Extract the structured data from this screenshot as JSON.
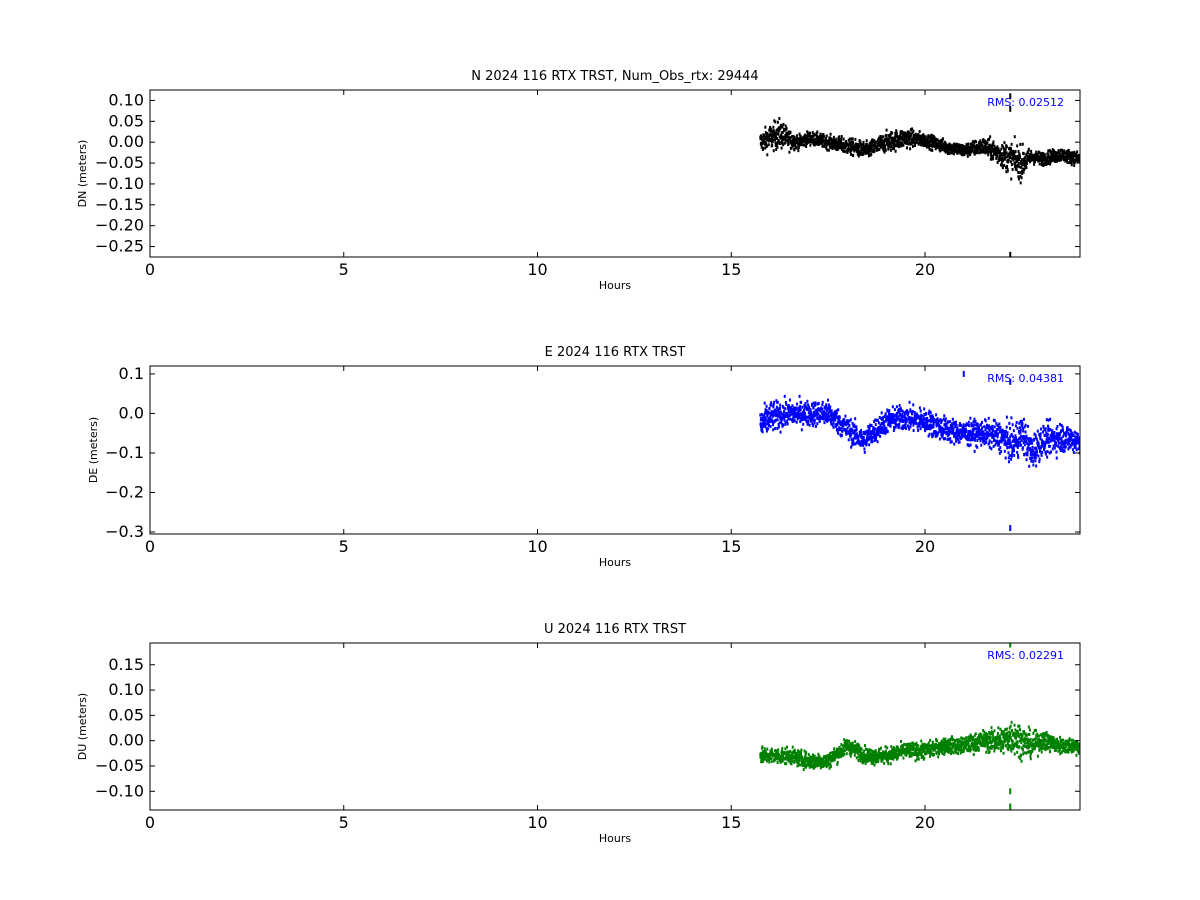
{
  "chart_data": [
    {
      "type": "scatter",
      "title": "N 2024 116 RTX  TRST, Num_Obs_rtx: 29444",
      "xlabel": "Hours",
      "ylabel": "DN (meters)",
      "xlim": [
        0,
        24
      ],
      "ylim": [
        -0.275,
        0.125
      ],
      "xticks": [
        0,
        5,
        10,
        15,
        20
      ],
      "yticks": [
        0.1,
        0.05,
        0.0,
        -0.05,
        -0.1,
        -0.15,
        -0.2,
        -0.25
      ],
      "ytick_labels": [
        "0.10",
        "0.05",
        "0.00",
        "−0.05",
        "−0.10",
        "−0.15",
        "−0.20",
        "−0.25"
      ],
      "color": "#000000",
      "rms_label": "RMS:  0.02512",
      "rms_color": "#0000ff",
      "grid": false,
      "series": [
        {
          "x": [
            15.75,
            16.0,
            16.25,
            16.5,
            16.75,
            17.0,
            17.5,
            18.0,
            18.5,
            19.0,
            19.5,
            20.0,
            20.5,
            21.0,
            21.5,
            22.0,
            22.25,
            22.5,
            22.75,
            23.0,
            23.5,
            24.0
          ],
          "y": [
            0.0,
            0.01,
            0.02,
            0.005,
            0.0,
            0.01,
            0.0,
            -0.01,
            -0.02,
            0.0,
            0.01,
            0.005,
            -0.01,
            -0.02,
            -0.01,
            -0.03,
            -0.04,
            -0.05,
            -0.035,
            -0.04,
            -0.03,
            -0.04
          ],
          "spread": [
            0.03,
            0.04,
            0.045,
            0.03,
            0.02,
            0.02,
            0.02,
            0.025,
            0.025,
            0.03,
            0.03,
            0.02,
            0.02,
            0.02,
            0.025,
            0.04,
            0.05,
            0.05,
            0.02,
            0.02,
            0.02,
            0.02
          ]
        }
      ],
      "outliers": [
        {
          "x": 22.2,
          "y": 0.11
        },
        {
          "x": 22.2,
          "y": 0.08
        },
        {
          "x": 22.2,
          "y": -0.27
        }
      ]
    },
    {
      "type": "scatter",
      "title": "E 2024 116 RTX  TRST",
      "xlabel": "Hours",
      "ylabel": "DE (meters)",
      "xlim": [
        0,
        24
      ],
      "ylim": [
        -0.305,
        0.12
      ],
      "xticks": [
        0,
        5,
        10,
        15,
        20
      ],
      "yticks": [
        0.1,
        0.0,
        -0.1,
        -0.2,
        -0.3
      ],
      "ytick_labels": [
        "0.1",
        "0.0",
        "−0.1",
        "−0.2",
        "−0.3"
      ],
      "color": "#0000ff",
      "rms_label": "RMS:  0.04381",
      "rms_color": "#0000ff",
      "grid": false,
      "series": [
        {
          "x": [
            15.75,
            16.0,
            16.5,
            17.0,
            17.5,
            18.0,
            18.4,
            18.75,
            19.0,
            19.5,
            20.0,
            20.5,
            21.0,
            21.5,
            22.0,
            22.25,
            22.5,
            22.75,
            23.0,
            23.5,
            24.0
          ],
          "y": [
            -0.03,
            -0.01,
            0.0,
            0.0,
            0.0,
            -0.04,
            -0.07,
            -0.04,
            -0.02,
            -0.01,
            -0.02,
            -0.04,
            -0.05,
            -0.05,
            -0.06,
            -0.08,
            -0.05,
            -0.1,
            -0.07,
            -0.06,
            -0.07
          ],
          "spread": [
            0.05,
            0.05,
            0.04,
            0.04,
            0.04,
            0.04,
            0.04,
            0.04,
            0.04,
            0.04,
            0.04,
            0.04,
            0.04,
            0.04,
            0.05,
            0.06,
            0.06,
            0.06,
            0.05,
            0.05,
            0.04
          ]
        }
      ],
      "outliers": [
        {
          "x": 21.0,
          "y": 0.1
        },
        {
          "x": 22.2,
          "y": 0.08
        },
        {
          "x": 22.2,
          "y": -0.29
        }
      ]
    },
    {
      "type": "scatter",
      "title": "U 2024 116 RTX  TRST",
      "xlabel": "Hours",
      "ylabel": "DU (meters)",
      "xlim": [
        0,
        24
      ],
      "ylim": [
        -0.137,
        0.193
      ],
      "xticks": [
        0,
        5,
        10,
        15,
        20
      ],
      "yticks": [
        0.15,
        0.1,
        0.05,
        0.0,
        -0.05,
        -0.1
      ],
      "ytick_labels": [
        "0.15",
        "0.10",
        "0.05",
        "0.00",
        "−0.05",
        "−0.10"
      ],
      "color": "#008000",
      "rms_label": "RMS:  0.02291",
      "rms_color": "#0000ff",
      "grid": false,
      "series": [
        {
          "x": [
            15.75,
            16.0,
            16.5,
            17.0,
            17.5,
            18.0,
            18.5,
            19.0,
            19.5,
            20.0,
            20.5,
            21.0,
            21.5,
            22.0,
            22.25,
            22.5,
            22.75,
            23.0,
            23.5,
            24.0
          ],
          "y": [
            -0.03,
            -0.03,
            -0.03,
            -0.04,
            -0.04,
            -0.01,
            -0.03,
            -0.03,
            -0.02,
            -0.02,
            -0.01,
            -0.01,
            0.0,
            0.0,
            0.01,
            0.0,
            -0.01,
            0.0,
            -0.01,
            -0.01
          ],
          "spread": [
            0.02,
            0.02,
            0.02,
            0.02,
            0.02,
            0.02,
            0.02,
            0.02,
            0.02,
            0.02,
            0.02,
            0.02,
            0.025,
            0.035,
            0.045,
            0.04,
            0.03,
            0.025,
            0.02,
            0.02
          ]
        }
      ],
      "outliers": [
        {
          "x": 22.2,
          "y": 0.19
        },
        {
          "x": 22.2,
          "y": -0.1
        },
        {
          "x": 22.2,
          "y": -0.13
        }
      ]
    }
  ]
}
